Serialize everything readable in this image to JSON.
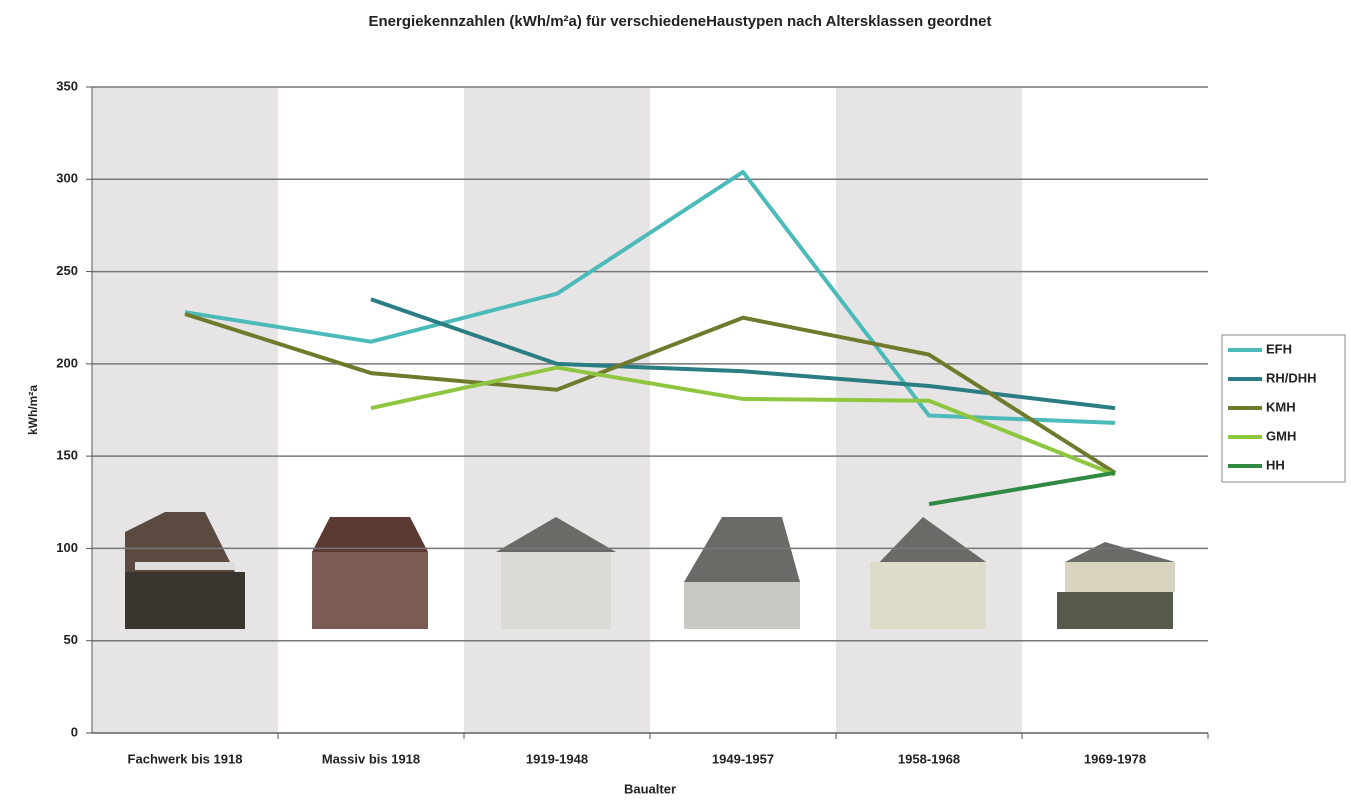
{
  "chart_data": {
    "type": "line",
    "title": "Energiekennzahlen (kWh/m²a) für verschiedeneHaustypen nach Altersklassen geordnet",
    "x_label": "Baualter",
    "y_label": "kWh/m²a",
    "categories": [
      "Fachwerk bis 1918",
      "Massiv bis 1918",
      "1919-1948",
      "1949-1957",
      "1958-1968",
      "1969-1978"
    ],
    "series": [
      {
        "name": "EFH",
        "color": "#4dbaba",
        "values": [
          228,
          212,
          238,
          304,
          172,
          168
        ]
      },
      {
        "name": "RH/DHH",
        "color": "#2a7d82",
        "values": [
          null,
          235,
          200,
          196,
          188,
          176
        ]
      },
      {
        "name": "KMH",
        "color": "#6f7a2c",
        "values": [
          227,
          195,
          186,
          225,
          205,
          141
        ]
      },
      {
        "name": "GMH",
        "color": "#8fc640",
        "values": [
          null,
          176,
          198,
          181,
          180,
          140
        ]
      },
      {
        "name": "HH",
        "color": "#2f8a42",
        "values": [
          null,
          null,
          null,
          null,
          124,
          141
        ]
      }
    ],
    "ylim": [
      0,
      350
    ],
    "yticks": [
      0,
      50,
      100,
      150,
      200,
      250,
      300,
      350
    ],
    "grid": true,
    "legend": "right"
  }
}
